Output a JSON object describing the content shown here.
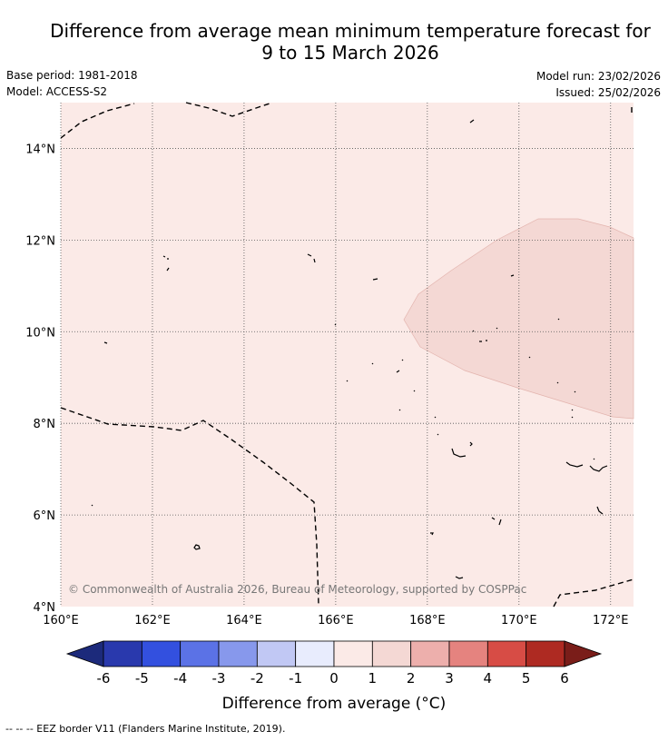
{
  "header": {
    "title_line1": "Difference from average mean minimum temperature forecast for",
    "title_line2": "9 to 15 March 2026",
    "base_period": "Base period: 1981-2018",
    "model": "Model: ACCESS-S2",
    "model_run": "Model run: 23/02/2026",
    "issued": "Issued: 25/02/2026"
  },
  "map": {
    "lon_labels": [
      "160°E",
      "162°E",
      "164°E",
      "166°E",
      "168°E",
      "170°E",
      "172°E"
    ],
    "lat_labels": [
      "14°N",
      "12°N",
      "10°N",
      "8°N",
      "6°N",
      "4°N"
    ],
    "lon_range": [
      160,
      172.5
    ],
    "lat_range": [
      4,
      15
    ],
    "copyright": "© Commonwealth of Australia 2026, Bureau of Meteorology, supported by COSPPac",
    "background_class_color": "#fbeae7",
    "warm_region_color": "#f4d8d4"
  },
  "colorbar": {
    "ticks": [
      "-6",
      "-5",
      "-4",
      "-3",
      "-2",
      "-1",
      "0",
      "1",
      "2",
      "3",
      "4",
      "5",
      "6"
    ],
    "colors": [
      "#2939ad",
      "#3350df",
      "#5b72e6",
      "#8798ec",
      "#c1c8f4",
      "#e8ecfd",
      "#fbeae7",
      "#f4d8d4",
      "#edafac",
      "#e5837f",
      "#d74c45",
      "#ae2a22"
    ],
    "low_extend_color": "#1c2a7b",
    "high_extend_color": "#7a1d19",
    "label": "Difference from average (°C)"
  },
  "footnote": "-- -- -- EEZ border V11 (Flanders Marine Institute, 2019)."
}
